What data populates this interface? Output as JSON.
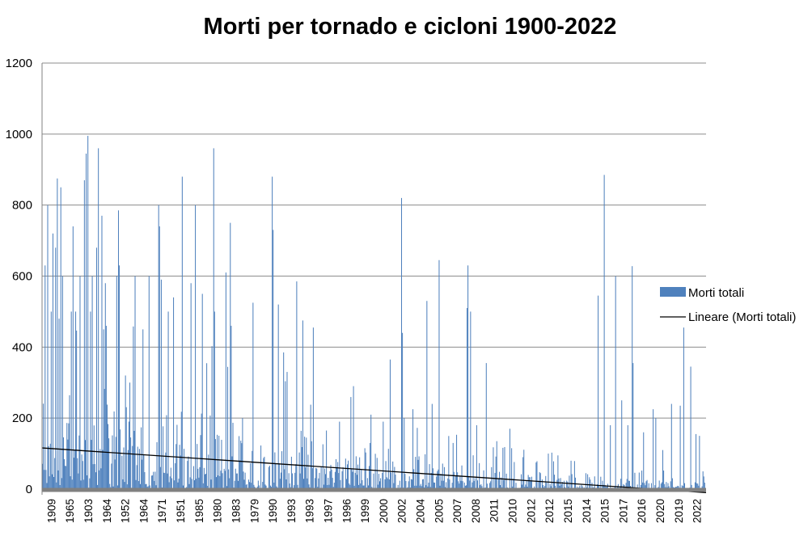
{
  "chart_data": {
    "type": "bar",
    "title": "Morti per tornado e cicloni 1900-2022",
    "xlabel": "",
    "ylabel": "",
    "ylim": [
      0,
      1200
    ],
    "yticks": [
      "0",
      "200",
      "400",
      "600",
      "800",
      "1000",
      "1200"
    ],
    "grid": true,
    "legend_position": "right",
    "bar_color": "#4f81bd",
    "trend_color": "#000000",
    "x_tick_labels": [
      "1909",
      "1965",
      "1903",
      "1964",
      "1952",
      "1964",
      "1971",
      "1951",
      "1985",
      "1980",
      "1983",
      "1979",
      "1990",
      "1993",
      "1993",
      "1997",
      "1996",
      "1999",
      "2000",
      "2002",
      "2004",
      "2005",
      "2007",
      "2008",
      "2011",
      "2010",
      "2012",
      "2012",
      "2015",
      "2014",
      "2015",
      "2017",
      "2016",
      "2020",
      "2019",
      "2022"
    ],
    "series": [
      {
        "name": "Morti totali",
        "count": 760,
        "peaks": [
          {
            "i": 3,
            "v": 630
          },
          {
            "i": 6,
            "v": 800
          },
          {
            "i": 10,
            "v": 500
          },
          {
            "i": 12,
            "v": 720
          },
          {
            "i": 15,
            "v": 680
          },
          {
            "i": 17,
            "v": 875
          },
          {
            "i": 19,
            "v": 480
          },
          {
            "i": 21,
            "v": 850
          },
          {
            "i": 23,
            "v": 600
          },
          {
            "i": 33,
            "v": 500
          },
          {
            "i": 35,
            "v": 740
          },
          {
            "i": 38,
            "v": 500
          },
          {
            "i": 43,
            "v": 600
          },
          {
            "i": 48,
            "v": 870
          },
          {
            "i": 50,
            "v": 945
          },
          {
            "i": 52,
            "v": 995
          },
          {
            "i": 55,
            "v": 500
          },
          {
            "i": 57,
            "v": 600
          },
          {
            "i": 62,
            "v": 680
          },
          {
            "i": 64,
            "v": 960
          },
          {
            "i": 68,
            "v": 770
          },
          {
            "i": 70,
            "v": 450
          },
          {
            "i": 72,
            "v": 580
          },
          {
            "i": 85,
            "v": 600
          },
          {
            "i": 87,
            "v": 785
          },
          {
            "i": 88,
            "v": 630
          },
          {
            "i": 95,
            "v": 320
          },
          {
            "i": 100,
            "v": 300
          },
          {
            "i": 106,
            "v": 600
          },
          {
            "i": 115,
            "v": 450
          },
          {
            "i": 122,
            "v": 600
          },
          {
            "i": 133,
            "v": 800
          },
          {
            "i": 134,
            "v": 740
          },
          {
            "i": 136,
            "v": 590
          },
          {
            "i": 144,
            "v": 500
          },
          {
            "i": 150,
            "v": 540
          },
          {
            "i": 160,
            "v": 880
          },
          {
            "i": 170,
            "v": 580
          },
          {
            "i": 175,
            "v": 800
          },
          {
            "i": 183,
            "v": 550
          },
          {
            "i": 196,
            "v": 960
          },
          {
            "i": 197,
            "v": 500
          },
          {
            "i": 210,
            "v": 610
          },
          {
            "i": 215,
            "v": 750
          },
          {
            "i": 216,
            "v": 460
          },
          {
            "i": 229,
            "v": 200
          },
          {
            "i": 241,
            "v": 525
          },
          {
            "i": 263,
            "v": 880
          },
          {
            "i": 264,
            "v": 730
          },
          {
            "i": 270,
            "v": 520
          },
          {
            "i": 276,
            "v": 385
          },
          {
            "i": 280,
            "v": 330
          },
          {
            "i": 291,
            "v": 585
          },
          {
            "i": 298,
            "v": 475
          },
          {
            "i": 310,
            "v": 455
          },
          {
            "i": 325,
            "v": 165
          },
          {
            "i": 340,
            "v": 190
          },
          {
            "i": 356,
            "v": 290
          },
          {
            "i": 375,
            "v": 130
          },
          {
            "i": 390,
            "v": 190
          },
          {
            "i": 398,
            "v": 365
          },
          {
            "i": 411,
            "v": 820
          },
          {
            "i": 412,
            "v": 440
          },
          {
            "i": 424,
            "v": 225
          },
          {
            "i": 440,
            "v": 530
          },
          {
            "i": 446,
            "v": 240
          },
          {
            "i": 454,
            "v": 645
          },
          {
            "i": 470,
            "v": 130
          },
          {
            "i": 486,
            "v": 510
          },
          {
            "i": 487,
            "v": 630
          },
          {
            "i": 490,
            "v": 500
          },
          {
            "i": 497,
            "v": 180
          },
          {
            "i": 508,
            "v": 355
          },
          {
            "i": 520,
            "v": 135
          },
          {
            "i": 535,
            "v": 170
          },
          {
            "i": 550,
            "v": 90
          },
          {
            "i": 565,
            "v": 75
          },
          {
            "i": 579,
            "v": 100
          },
          {
            "i": 590,
            "v": 95
          },
          {
            "i": 605,
            "v": 80
          },
          {
            "i": 636,
            "v": 545
          },
          {
            "i": 643,
            "v": 885
          },
          {
            "i": 650,
            "v": 180
          },
          {
            "i": 656,
            "v": 600
          },
          {
            "i": 663,
            "v": 250
          },
          {
            "i": 670,
            "v": 180
          },
          {
            "i": 675,
            "v": 628
          },
          {
            "i": 676,
            "v": 355
          },
          {
            "i": 688,
            "v": 160
          },
          {
            "i": 699,
            "v": 225
          },
          {
            "i": 702,
            "v": 200
          },
          {
            "i": 710,
            "v": 110
          },
          {
            "i": 720,
            "v": 240
          },
          {
            "i": 730,
            "v": 235
          },
          {
            "i": 734,
            "v": 455
          },
          {
            "i": 742,
            "v": 345
          },
          {
            "i": 748,
            "v": 155
          },
          {
            "i": 752,
            "v": 150
          },
          {
            "i": 756,
            "v": 50
          }
        ]
      },
      {
        "name": "Lineare (Morti totali)",
        "type": "line",
        "values": [
          116,
          -10
        ]
      }
    ]
  },
  "legend": {
    "bars_label": "Morti totali",
    "trend_label": "Lineare (Morti totali)"
  }
}
